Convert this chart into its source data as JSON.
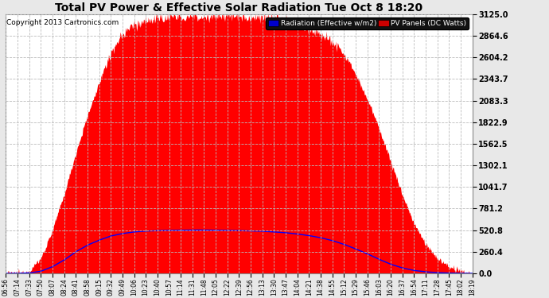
{
  "title": "Total PV Power & Effective Solar Radiation Tue Oct 8 18:20",
  "copyright": "Copyright 2013 Cartronics.com",
  "yticks": [
    0.0,
    260.4,
    520.8,
    781.2,
    1041.7,
    1302.1,
    1562.5,
    1822.9,
    2083.3,
    2343.7,
    2604.2,
    2864.6,
    3125.0
  ],
  "ymax": 3125.0,
  "bg_color": "#e8e8e8",
  "plot_bg_color": "#ffffff",
  "grid_color": "#bbbbbb",
  "fill_color": "#ff0000",
  "line_color": "#0000ff",
  "title_color": "#000000",
  "legend_labels": [
    "Radiation (Effective w/m2)",
    "PV Panels (DC Watts)"
  ],
  "x_labels": [
    "06:56",
    "07:14",
    "07:33",
    "07:50",
    "08:07",
    "08:24",
    "08:41",
    "08:58",
    "09:15",
    "09:32",
    "09:49",
    "10:06",
    "10:23",
    "10:40",
    "10:57",
    "11:14",
    "11:31",
    "11:48",
    "12:05",
    "12:22",
    "12:39",
    "12:56",
    "13:13",
    "13:30",
    "13:47",
    "14:04",
    "14:21",
    "14:38",
    "14:55",
    "15:12",
    "15:29",
    "15:46",
    "16:03",
    "16:20",
    "16:37",
    "16:54",
    "17:11",
    "17:28",
    "17:45",
    "18:02",
    "18:19"
  ]
}
